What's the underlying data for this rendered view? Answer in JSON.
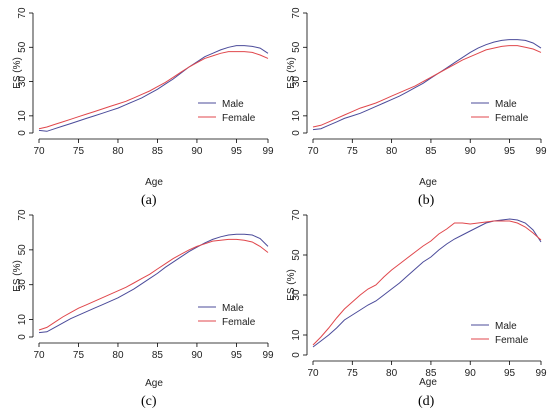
{
  "colors": {
    "male": "#4b4b9a",
    "female": "#e0474c",
    "axis": "#000000",
    "legend_border": "#000000"
  },
  "chart_data": [
    {
      "type": "line",
      "panel_label": "(a)",
      "xlabel": "Age",
      "ylabel": "ES (%)",
      "xlim": [
        70,
        99
      ],
      "ylim": [
        0,
        70
      ],
      "x_ticks": [
        70,
        75,
        80,
        85,
        90,
        95,
        99
      ],
      "y_ticks": [
        0,
        10,
        30,
        50,
        70
      ],
      "grid": false,
      "legend_position": "bottom-right",
      "x": [
        70,
        71,
        72,
        73,
        74,
        75,
        76,
        77,
        78,
        79,
        80,
        81,
        82,
        83,
        84,
        85,
        86,
        87,
        88,
        89,
        90,
        91,
        92,
        93,
        94,
        95,
        96,
        97,
        98,
        99
      ],
      "series": [
        {
          "name": "Male",
          "color": "#4b4b9a",
          "values": [
            1.5,
            1.0,
            2.5,
            4.0,
            5.5,
            7.0,
            8.5,
            10.0,
            11.5,
            13.0,
            14.5,
            16.5,
            18.5,
            20.5,
            23.0,
            25.5,
            28.5,
            31.5,
            35.0,
            38.5,
            41.5,
            44.5,
            46.5,
            48.5,
            50.0,
            51.0,
            51.0,
            50.5,
            49.5,
            46.5
          ]
        },
        {
          "name": "Female",
          "color": "#e0474c",
          "values": [
            2.5,
            3.5,
            5.0,
            6.5,
            8.0,
            9.5,
            11.0,
            12.5,
            14.0,
            15.5,
            17.0,
            18.5,
            20.5,
            22.5,
            24.5,
            27.0,
            29.5,
            32.5,
            35.5,
            38.5,
            41.0,
            43.5,
            45.0,
            46.5,
            47.5,
            47.5,
            47.5,
            47.0,
            45.5,
            43.5
          ]
        }
      ]
    },
    {
      "type": "line",
      "panel_label": "(b)",
      "xlabel": "Age",
      "ylabel": "ES (%)",
      "xlim": [
        70,
        99
      ],
      "ylim": [
        0,
        70
      ],
      "x_ticks": [
        70,
        75,
        80,
        85,
        90,
        95,
        99
      ],
      "y_ticks": [
        0,
        10,
        30,
        50,
        70
      ],
      "grid": false,
      "legend_position": "bottom-right",
      "x": [
        70,
        71,
        72,
        73,
        74,
        75,
        76,
        77,
        78,
        79,
        80,
        81,
        82,
        83,
        84,
        85,
        86,
        87,
        88,
        89,
        90,
        91,
        92,
        93,
        94,
        95,
        96,
        97,
        98,
        99
      ],
      "series": [
        {
          "name": "Male",
          "color": "#4b4b9a",
          "values": [
            2.0,
            2.5,
            4.5,
            6.5,
            8.5,
            10.0,
            11.5,
            13.5,
            15.5,
            17.5,
            19.5,
            21.5,
            24.0,
            26.5,
            29.0,
            32.0,
            35.0,
            38.0,
            41.0,
            44.0,
            47.0,
            49.5,
            51.5,
            53.0,
            54.0,
            54.5,
            54.5,
            54.0,
            52.5,
            49.5
          ]
        },
        {
          "name": "Female",
          "color": "#e0474c",
          "values": [
            3.5,
            4.5,
            6.5,
            8.5,
            10.5,
            12.5,
            14.5,
            16.0,
            17.5,
            19.5,
            21.5,
            23.5,
            25.5,
            27.5,
            30.0,
            32.5,
            35.0,
            37.5,
            40.0,
            42.5,
            44.5,
            46.5,
            48.5,
            49.5,
            50.5,
            51.0,
            51.0,
            50.0,
            49.0,
            47.0
          ]
        }
      ]
    },
    {
      "type": "line",
      "panel_label": "(c)",
      "xlabel": "Age",
      "ylabel": "ES (%)",
      "xlim": [
        70,
        99
      ],
      "ylim": [
        0,
        70
      ],
      "x_ticks": [
        70,
        75,
        80,
        85,
        90,
        95,
        99
      ],
      "y_ticks": [
        0,
        10,
        30,
        50,
        70
      ],
      "grid": false,
      "legend_position": "bottom-right",
      "x": [
        70,
        71,
        72,
        73,
        74,
        75,
        76,
        77,
        78,
        79,
        80,
        81,
        82,
        83,
        84,
        85,
        86,
        87,
        88,
        89,
        90,
        91,
        92,
        93,
        94,
        95,
        96,
        97,
        98,
        99
      ],
      "series": [
        {
          "name": "Male",
          "color": "#4b4b9a",
          "values": [
            2.5,
            3.0,
            5.5,
            8.0,
            10.5,
            12.5,
            14.5,
            16.5,
            18.5,
            20.5,
            22.5,
            25.0,
            27.5,
            30.5,
            33.5,
            36.5,
            40.0,
            43.0,
            46.0,
            49.0,
            51.5,
            54.0,
            56.0,
            57.5,
            58.5,
            59.0,
            59.0,
            58.5,
            56.5,
            52.0
          ]
        },
        {
          "name": "Female",
          "color": "#e0474c",
          "values": [
            4.0,
            5.5,
            8.5,
            11.5,
            14.0,
            16.5,
            18.5,
            20.5,
            22.5,
            24.5,
            26.5,
            28.5,
            31.0,
            33.5,
            36.0,
            39.0,
            42.0,
            45.0,
            47.5,
            50.0,
            52.0,
            53.5,
            55.0,
            55.5,
            56.0,
            56.0,
            55.5,
            54.5,
            52.0,
            48.5
          ]
        }
      ]
    },
    {
      "type": "line",
      "panel_label": "(d)",
      "xlabel": "Age",
      "ylabel": "ES (%)",
      "xlim": [
        70,
        99
      ],
      "ylim": [
        0,
        70
      ],
      "x_ticks": [
        70,
        75,
        80,
        85,
        90,
        95,
        99
      ],
      "y_ticks": [
        0,
        10,
        30,
        50,
        70
      ],
      "grid": false,
      "legend_position": "bottom-right",
      "x": [
        70,
        71,
        72,
        73,
        74,
        75,
        76,
        77,
        78,
        79,
        80,
        81,
        82,
        83,
        84,
        85,
        86,
        87,
        88,
        89,
        90,
        91,
        92,
        93,
        94,
        95,
        96,
        97,
        98,
        99
      ],
      "series": [
        {
          "name": "Male",
          "color": "#4b4b9a",
          "values": [
            4.0,
            7.0,
            10.0,
            13.5,
            17.5,
            20.0,
            22.5,
            25.0,
            27.0,
            30.0,
            33.0,
            36.0,
            39.5,
            43.0,
            46.5,
            49.0,
            52.5,
            55.5,
            58.0,
            60.0,
            62.0,
            64.0,
            66.0,
            67.0,
            67.5,
            68.0,
            67.5,
            66.0,
            62.5,
            56.5
          ]
        },
        {
          "name": "Female",
          "color": "#e0474c",
          "values": [
            5.0,
            9.0,
            13.5,
            18.5,
            23.0,
            26.5,
            30.0,
            33.0,
            35.0,
            39.0,
            42.5,
            45.5,
            48.5,
            51.5,
            54.5,
            57.0,
            60.5,
            63.0,
            66.0,
            66.0,
            65.5,
            66.0,
            66.5,
            67.0,
            67.0,
            67.0,
            66.0,
            64.0,
            61.0,
            57.5
          ]
        }
      ]
    }
  ]
}
